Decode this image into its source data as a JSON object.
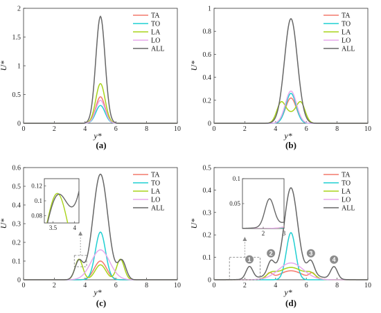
{
  "figure": {
    "series_styles": [
      {
        "name": "TA",
        "color": "#f4786b"
      },
      {
        "name": "TO",
        "color": "#1fcfd2"
      },
      {
        "name": "LA",
        "color": "#a8d318"
      },
      {
        "name": "LO",
        "color": "#e6a8ec"
      },
      {
        "name": "ALL",
        "color": "#666666"
      }
    ]
  },
  "chart_data": [
    {
      "id": "a",
      "caption": "(a)",
      "type": "line",
      "xlabel": "y*",
      "ylabel": "U*",
      "xlim": [
        0,
        10
      ],
      "ylim": [
        0,
        2
      ],
      "xticks": [
        0,
        2,
        4,
        6,
        8,
        10
      ],
      "yticks": [
        0,
        0.5,
        1,
        1.5,
        2
      ],
      "xtick_labels": [
        "0",
        "2",
        "4",
        "6",
        "8",
        "10"
      ],
      "ytick_labels": [
        "0",
        "0.5",
        "1",
        "1.5",
        "2"
      ],
      "series": [
        {
          "name": "TA",
          "components": [
            [
              5,
              0.3,
              0.46
            ]
          ]
        },
        {
          "name": "TO",
          "components": [
            [
              5,
              0.3,
              0.31
            ]
          ]
        },
        {
          "name": "LA",
          "components": [
            [
              5,
              0.3,
              0.69
            ]
          ]
        },
        {
          "name": "LO",
          "components": [
            [
              5,
              0.3,
              0.4
            ]
          ]
        },
        {
          "name": "ALL",
          "components": [
            [
              5,
              0.3,
              1.86
            ]
          ]
        }
      ]
    },
    {
      "id": "b",
      "caption": "(b)",
      "type": "line",
      "xlabel": "y*",
      "ylabel": "U*",
      "xlim": [
        0,
        10
      ],
      "ylim": [
        0,
        1
      ],
      "xticks": [
        0,
        2,
        4,
        6,
        8,
        10
      ],
      "yticks": [
        0,
        0.2,
        0.4,
        0.6,
        0.8,
        1
      ],
      "xtick_labels": [
        "0",
        "2",
        "4",
        "6",
        "8",
        "10"
      ],
      "ytick_labels": [
        "0",
        "0.2",
        "0.4",
        "0.6",
        "0.8",
        "1"
      ],
      "series": [
        {
          "name": "TA",
          "components": [
            [
              5,
              0.35,
              0.22
            ]
          ]
        },
        {
          "name": "TO",
          "components": [
            [
              5,
              0.33,
              0.26
            ]
          ]
        },
        {
          "name": "LA",
          "components": [
            [
              4.35,
              0.28,
              0.165
            ],
            [
              5.65,
              0.28,
              0.165
            ],
            [
              5,
              0.4,
              0.08
            ]
          ]
        },
        {
          "name": "LO",
          "components": [
            [
              5,
              0.36,
              0.28
            ]
          ]
        },
        {
          "name": "ALL",
          "components": [
            [
              5,
              0.42,
              0.91
            ]
          ]
        }
      ]
    },
    {
      "id": "c",
      "caption": "(c)",
      "type": "line",
      "xlabel": "y*",
      "ylabel": "U*",
      "xlim": [
        0,
        10
      ],
      "ylim": [
        0,
        0.6
      ],
      "xticks": [
        0,
        2,
        4,
        6,
        8,
        10
      ],
      "yticks": [
        0,
        0.1,
        0.2,
        0.3,
        0.4,
        0.5,
        0.6
      ],
      "xtick_labels": [
        "0",
        "2",
        "4",
        "6",
        "8",
        "10"
      ],
      "ytick_labels": [
        "0",
        "0.1",
        "0.2",
        "0.3",
        "0.4",
        "0.5",
        "0.6"
      ],
      "series": [
        {
          "name": "TA",
          "components": [
            [
              5,
              0.4,
              0.1
            ]
          ]
        },
        {
          "name": "TO",
          "components": [
            [
              5,
              0.33,
              0.255
            ]
          ]
        },
        {
          "name": "LA",
          "components": [
            [
              3.6,
              0.25,
              0.11
            ],
            [
              6.3,
              0.25,
              0.11
            ],
            [
              5,
              0.35,
              0.08
            ]
          ]
        },
        {
          "name": "LO",
          "components": [
            [
              5,
              0.6,
              0.16
            ]
          ]
        },
        {
          "name": "ALL",
          "components": [
            [
              5,
              0.48,
              0.565
            ],
            [
              3.6,
              0.26,
              0.1
            ],
            [
              6.4,
              0.26,
              0.1
            ]
          ]
        }
      ],
      "inset": {
        "xlim": [
          3.3,
          4.1
        ],
        "ylim": [
          0.07,
          0.13
        ],
        "xticks": [
          3.5,
          4
        ],
        "yticks": [
          0.08,
          0.1,
          0.12
        ],
        "xtick_labels": [
          "3.5",
          "4"
        ],
        "ytick_labels": [
          "0.08",
          "0.1",
          "0.12"
        ]
      }
    },
    {
      "id": "d",
      "caption": "(d)",
      "type": "line",
      "xlabel": "y*",
      "ylabel": "U*",
      "xlim": [
        0,
        10
      ],
      "ylim": [
        0,
        0.5
      ],
      "xticks": [
        0,
        2,
        4,
        6,
        8,
        10
      ],
      "yticks": [
        0,
        0.1,
        0.2,
        0.3,
        0.4,
        0.5
      ],
      "xtick_labels": [
        "0",
        "2",
        "4",
        "6",
        "8",
        "10"
      ],
      "ytick_labels": [
        "0",
        "0.1",
        "0.2",
        "0.3",
        "0.4",
        "0.5"
      ],
      "series": [
        {
          "name": "TA",
          "components": [
            [
              5,
              0.75,
              0.04
            ],
            [
              3.6,
              0.2,
              0.025
            ],
            [
              6.4,
              0.2,
              0.025
            ]
          ]
        },
        {
          "name": "TO",
          "components": [
            [
              5,
              0.3,
              0.21
            ]
          ]
        },
        {
          "name": "LA",
          "components": [
            [
              5,
              0.8,
              0.055
            ],
            [
              3.7,
              0.3,
              0.02
            ],
            [
              6.3,
              0.3,
              0.02
            ]
          ]
        },
        {
          "name": "LO",
          "components": [
            [
              5,
              0.8,
              0.075
            ]
          ]
        },
        {
          "name": "ALL",
          "components": [
            [
              5,
              0.42,
              0.37
            ],
            [
              2.3,
              0.22,
              0.055
            ],
            [
              3.7,
              0.22,
              0.06
            ],
            [
              6.3,
              0.22,
              0.06
            ],
            [
              7.8,
              0.22,
              0.055
            ],
            [
              5,
              1.3,
              0.04
            ]
          ]
        }
      ],
      "inset": {
        "xlim": [
          1,
          3
        ],
        "ylim": [
          0,
          0.1
        ],
        "xticks": [
          2,
          3
        ],
        "yticks": [
          0.05,
          0.1
        ],
        "xtick_labels": [
          "2",
          "3"
        ],
        "ytick_labels": [
          "0.05",
          "0.1"
        ]
      },
      "markers": [
        "1",
        "2",
        "3",
        "4"
      ]
    }
  ]
}
